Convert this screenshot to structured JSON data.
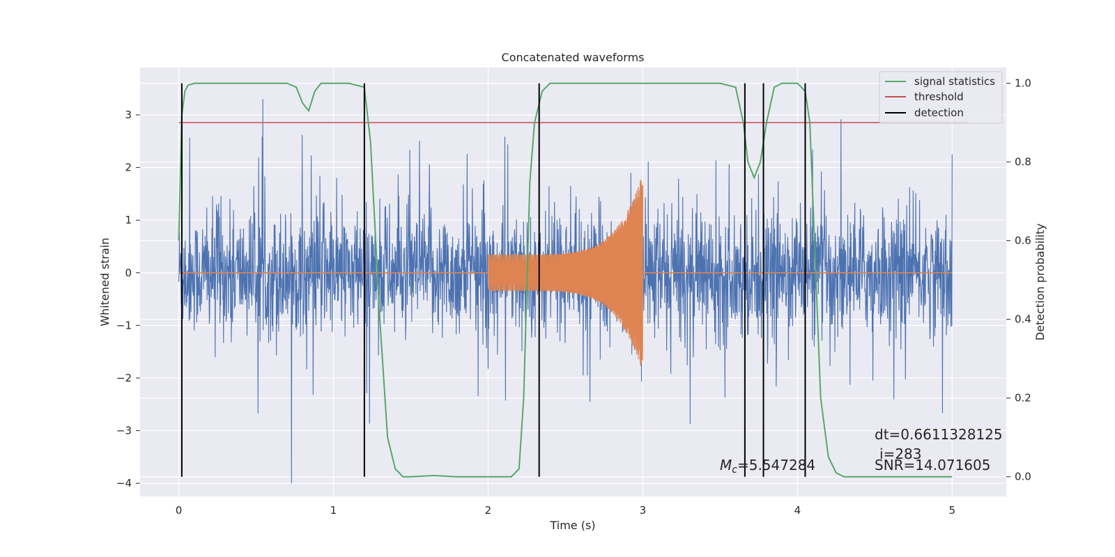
{
  "chart_data": {
    "type": "line",
    "title": "Concatenated waveforms",
    "xlabel": "Time (s)",
    "ylabel": "Whitened strain",
    "y2label": "Detection probability",
    "xlim": [
      -0.25,
      5.35
    ],
    "ylim": [
      -4.25,
      3.9
    ],
    "y2lim": [
      -0.05,
      1.04
    ],
    "x_ticks": [
      0,
      1,
      2,
      3,
      4,
      5
    ],
    "y_ticks": [
      3,
      2,
      1,
      0,
      -1,
      -2,
      -3,
      -4
    ],
    "y2_ticks": [
      1.0,
      0.8,
      0.6,
      0.4,
      0.2,
      0.0
    ],
    "x_tick_labels": [
      "0",
      "1",
      "2",
      "3",
      "4",
      "5"
    ],
    "y_tick_labels": [
      "3",
      "2",
      "1",
      "0",
      "−1",
      "−2",
      "−3",
      "−4"
    ],
    "y2_tick_labels": [
      "1.0",
      "0.8",
      "0.6",
      "0.4",
      "0.2",
      "0.0"
    ],
    "grid": true,
    "legend_position": "top-right",
    "colors": {
      "noise": "#4c72b0",
      "injection": "#dd8452",
      "signal_statistics": "#55a868",
      "threshold": "#c44e52",
      "detection": "#000000",
      "background": "#eaeaf2"
    },
    "series": [
      {
        "name": "signal statistics",
        "axis": "right",
        "x": [
          0.0,
          0.02,
          0.04,
          0.06,
          0.1,
          0.2,
          0.5,
          0.7,
          0.76,
          0.8,
          0.84,
          0.88,
          0.92,
          1.0,
          1.1,
          1.2,
          1.24,
          1.3,
          1.35,
          1.4,
          1.45,
          1.5,
          1.65,
          1.8,
          2.0,
          2.15,
          2.2,
          2.23,
          2.27,
          2.3,
          2.35,
          2.4,
          2.5,
          2.7,
          3.0,
          3.4,
          3.5,
          3.6,
          3.65,
          3.68,
          3.72,
          3.76,
          3.8,
          3.85,
          3.9,
          4.0,
          4.05,
          4.08,
          4.12,
          4.15,
          4.2,
          4.25,
          4.3,
          4.4,
          4.6,
          5.0
        ],
        "y": [
          0.6,
          0.92,
          0.98,
          0.995,
          1.0,
          1.0,
          1.0,
          1.0,
          0.99,
          0.95,
          0.93,
          0.98,
          1.0,
          1.0,
          1.0,
          0.99,
          0.85,
          0.4,
          0.1,
          0.02,
          0.0,
          0.0,
          0.003,
          0.0,
          0.0,
          0.0,
          0.02,
          0.2,
          0.75,
          0.9,
          0.98,
          1.0,
          1.0,
          1.0,
          1.0,
          1.0,
          1.0,
          0.99,
          0.9,
          0.8,
          0.76,
          0.8,
          0.9,
          0.99,
          1.0,
          1.0,
          0.98,
          0.9,
          0.5,
          0.2,
          0.05,
          0.01,
          0.0,
          0.0,
          0.0,
          0.0
        ]
      },
      {
        "name": "threshold",
        "axis": "right",
        "x": [
          0.0,
          5.1
        ],
        "y": [
          0.9,
          0.9
        ]
      },
      {
        "name": "detection",
        "axis": "right",
        "x": [
          0.02,
          1.2,
          2.33,
          3.66,
          3.78,
          4.05
        ],
        "y_range": [
          0.0,
          1.0
        ]
      }
    ],
    "noise": {
      "x_range": [
        0.0,
        5.0
      ],
      "amplitude": 1.6,
      "max_spike": 3.3,
      "min_spike": -4.0
    },
    "injection": {
      "x_range": [
        2.0,
        3.0
      ],
      "start_amplitude": 0.35,
      "peak_amplitude": 1.9
    },
    "annotations": {
      "mc": "=5.547284",
      "dt": "dt=0.6611328125",
      "i": "i=283",
      "snr": "SNR=14.071605"
    }
  }
}
